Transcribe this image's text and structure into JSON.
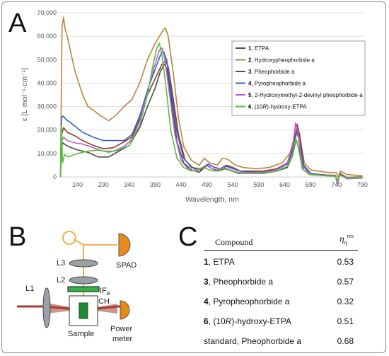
{
  "panels": {
    "a": "A",
    "b": "B",
    "c": "C"
  },
  "chart_data": {
    "type": "line",
    "xlabel": "Wavelength, nm",
    "ylabel": "ε [L·mol⁻¹·cm⁻¹]",
    "xlim": [
      205,
      795
    ],
    "ylim": [
      -6000,
      70000
    ],
    "x_ticks": [
      "240",
      "290",
      "340",
      "390",
      "440",
      "490",
      "540",
      "590",
      "640",
      "690",
      "740",
      "790"
    ],
    "x_tick_values": [
      240,
      290,
      340,
      390,
      440,
      490,
      540,
      590,
      640,
      690,
      740,
      790
    ],
    "y_ticks": [
      "0",
      "10,000",
      "20,000",
      "30,000",
      "40,000",
      "50,000",
      "60,000",
      "70,000"
    ],
    "y_tick_values": [
      0,
      10000,
      20000,
      30000,
      40000,
      50000,
      60000,
      70000
    ],
    "grid": "horizontal",
    "legend_position": "right",
    "series": [
      {
        "num": "1",
        "label": ", ETPA",
        "color": "#4a4a4a",
        "points": [
          [
            207,
            0
          ],
          [
            209,
            13000
          ],
          [
            212,
            14500
          ],
          [
            218,
            13500
          ],
          [
            228,
            12500
          ],
          [
            240,
            11500
          ],
          [
            260,
            10500
          ],
          [
            280,
            8500
          ],
          [
            300,
            8500
          ],
          [
            320,
            11000
          ],
          [
            340,
            13500
          ],
          [
            360,
            21000
          ],
          [
            375,
            30000
          ],
          [
            390,
            38000
          ],
          [
            400,
            45000
          ],
          [
            408,
            48000
          ],
          [
            413,
            46000
          ],
          [
            420,
            35000
          ],
          [
            432,
            15000
          ],
          [
            445,
            6000
          ],
          [
            460,
            3000
          ],
          [
            475,
            2000
          ],
          [
            490,
            5000
          ],
          [
            500,
            3500
          ],
          [
            510,
            2500
          ],
          [
            525,
            3500
          ],
          [
            535,
            3000
          ],
          [
            550,
            1500
          ],
          [
            575,
            1500
          ],
          [
            600,
            1500
          ],
          [
            625,
            2500
          ],
          [
            645,
            4000
          ],
          [
            655,
            9000
          ],
          [
            662,
            16000
          ],
          [
            668,
            12000
          ],
          [
            676,
            3000
          ],
          [
            690,
            1000
          ],
          [
            720,
            500
          ],
          [
            738,
            300
          ],
          [
            742,
            -2000
          ],
          [
            746,
            1500
          ],
          [
            760,
            -500
          ],
          [
            790,
            -500
          ]
        ]
      },
      {
        "num": "2",
        "label": ", Hydroxypheophorbide a",
        "color": "#b8863a",
        "points": [
          [
            207,
            0
          ],
          [
            210,
            64000
          ],
          [
            213,
            68000
          ],
          [
            216,
            63000
          ],
          [
            220,
            60000
          ],
          [
            235,
            45000
          ],
          [
            250,
            35000
          ],
          [
            260,
            30000
          ],
          [
            270,
            28500
          ],
          [
            285,
            26000
          ],
          [
            300,
            24000
          ],
          [
            315,
            26500
          ],
          [
            330,
            30000
          ],
          [
            345,
            33000
          ],
          [
            360,
            40000
          ],
          [
            375,
            50000
          ],
          [
            390,
            57000
          ],
          [
            405,
            62500
          ],
          [
            410,
            63500
          ],
          [
            415,
            60000
          ],
          [
            425,
            44000
          ],
          [
            435,
            25000
          ],
          [
            445,
            13000
          ],
          [
            460,
            7000
          ],
          [
            475,
            5000
          ],
          [
            485,
            8000
          ],
          [
            495,
            6000
          ],
          [
            510,
            5000
          ],
          [
            520,
            8000
          ],
          [
            530,
            7500
          ],
          [
            545,
            5000
          ],
          [
            560,
            4000
          ],
          [
            585,
            3500
          ],
          [
            610,
            4000
          ],
          [
            635,
            6000
          ],
          [
            650,
            10000
          ],
          [
            660,
            18000
          ],
          [
            665,
            20500
          ],
          [
            670,
            16000
          ],
          [
            678,
            6000
          ],
          [
            690,
            3000
          ],
          [
            720,
            2000
          ],
          [
            740,
            1800
          ],
          [
            744,
            -500
          ],
          [
            748,
            2500
          ],
          [
            760,
            1000
          ],
          [
            790,
            500
          ]
        ]
      },
      {
        "num": "3",
        "label": ", Pheophorbide a",
        "color": "#8e3b24",
        "points": [
          [
            207,
            0
          ],
          [
            209,
            18000
          ],
          [
            213,
            21000
          ],
          [
            220,
            19000
          ],
          [
            235,
            17500
          ],
          [
            250,
            15500
          ],
          [
            270,
            13500
          ],
          [
            290,
            12000
          ],
          [
            310,
            12500
          ],
          [
            330,
            15000
          ],
          [
            345,
            17000
          ],
          [
            360,
            25000
          ],
          [
            375,
            35000
          ],
          [
            390,
            42000
          ],
          [
            403,
            48000
          ],
          [
            410,
            49500
          ],
          [
            415,
            47000
          ],
          [
            423,
            36000
          ],
          [
            435,
            18000
          ],
          [
            448,
            7000
          ],
          [
            465,
            3500
          ],
          [
            480,
            3000
          ],
          [
            492,
            5500
          ],
          [
            505,
            4000
          ],
          [
            515,
            3500
          ],
          [
            528,
            5000
          ],
          [
            540,
            4000
          ],
          [
            555,
            2500
          ],
          [
            575,
            2500
          ],
          [
            600,
            2500
          ],
          [
            625,
            3500
          ],
          [
            645,
            6000
          ],
          [
            657,
            13000
          ],
          [
            664,
            22500
          ],
          [
            669,
            18000
          ],
          [
            677,
            5000
          ],
          [
            690,
            1500
          ],
          [
            720,
            800
          ],
          [
            738,
            700
          ],
          [
            742,
            -3000
          ],
          [
            746,
            1500
          ],
          [
            760,
            -200
          ],
          [
            790,
            0
          ]
        ]
      },
      {
        "num": "4",
        "label": ", Pyropheophorbide a",
        "color": "#3763b8",
        "points": [
          [
            207,
            0
          ],
          [
            209,
            25000
          ],
          [
            212,
            26000
          ],
          [
            218,
            24500
          ],
          [
            230,
            22500
          ],
          [
            250,
            19000
          ],
          [
            270,
            17000
          ],
          [
            290,
            15500
          ],
          [
            310,
            15500
          ],
          [
            330,
            15500
          ],
          [
            345,
            18000
          ],
          [
            360,
            26000
          ],
          [
            375,
            37000
          ],
          [
            390,
            46000
          ],
          [
            402,
            53000
          ],
          [
            406,
            53500
          ],
          [
            412,
            50000
          ],
          [
            420,
            38000
          ],
          [
            432,
            19000
          ],
          [
            445,
            8000
          ],
          [
            460,
            4000
          ],
          [
            478,
            3500
          ],
          [
            492,
            5500
          ],
          [
            505,
            4000
          ],
          [
            515,
            3500
          ],
          [
            528,
            4500
          ],
          [
            540,
            3500
          ],
          [
            555,
            2500
          ],
          [
            575,
            2000
          ],
          [
            600,
            2000
          ],
          [
            625,
            3000
          ],
          [
            645,
            5500
          ],
          [
            657,
            12000
          ],
          [
            663,
            19000
          ],
          [
            668,
            16000
          ],
          [
            676,
            5000
          ],
          [
            690,
            1500
          ],
          [
            720,
            700
          ],
          [
            738,
            600
          ],
          [
            742,
            -2500
          ],
          [
            746,
            1000
          ],
          [
            760,
            -300
          ],
          [
            790,
            -200
          ]
        ]
      },
      {
        "num": "5",
        "label": ", 2-Hydroxymethyl-2-devinyl pheophorbide-a",
        "color": "#c15ad7",
        "points": [
          [
            207,
            0
          ],
          [
            209,
            15000
          ],
          [
            213,
            17000
          ],
          [
            220,
            15500
          ],
          [
            235,
            14500
          ],
          [
            250,
            14000
          ],
          [
            270,
            12500
          ],
          [
            290,
            11000
          ],
          [
            310,
            11000
          ],
          [
            330,
            13000
          ],
          [
            345,
            16000
          ],
          [
            360,
            24000
          ],
          [
            375,
            36000
          ],
          [
            388,
            47000
          ],
          [
            398,
            54000
          ],
          [
            403,
            55000
          ],
          [
            408,
            51000
          ],
          [
            416,
            38000
          ],
          [
            428,
            18000
          ],
          [
            440,
            7000
          ],
          [
            455,
            3000
          ],
          [
            470,
            2500
          ],
          [
            488,
            5000
          ],
          [
            500,
            3500
          ],
          [
            510,
            3000
          ],
          [
            522,
            4000
          ],
          [
            535,
            3000
          ],
          [
            550,
            2000
          ],
          [
            575,
            1800
          ],
          [
            600,
            1800
          ],
          [
            625,
            3000
          ],
          [
            645,
            6000
          ],
          [
            656,
            14000
          ],
          [
            661,
            23000
          ],
          [
            666,
            18000
          ],
          [
            674,
            5000
          ],
          [
            688,
            1200
          ],
          [
            720,
            600
          ],
          [
            738,
            500
          ],
          [
            742,
            -3500
          ],
          [
            746,
            1000
          ],
          [
            760,
            -800
          ],
          [
            790,
            -500
          ]
        ]
      },
      {
        "num": "6",
        "label": ", (10",
        "label_italic": "R",
        "label_tail": ")-hydroxy-ETPA",
        "color": "#52c236",
        "points": [
          [
            207,
            0
          ],
          [
            209,
            22000
          ],
          [
            211,
            6000
          ],
          [
            215,
            9500
          ],
          [
            222,
            8500
          ],
          [
            240,
            10000
          ],
          [
            260,
            11000
          ],
          [
            280,
            11500
          ],
          [
            300,
            10500
          ],
          [
            320,
            11500
          ],
          [
            340,
            13500
          ],
          [
            360,
            22000
          ],
          [
            375,
            35000
          ],
          [
            385,
            47000
          ],
          [
            393,
            55000
          ],
          [
            398,
            57000
          ],
          [
            403,
            52000
          ],
          [
            410,
            40000
          ],
          [
            420,
            20000
          ],
          [
            432,
            8000
          ],
          [
            445,
            4000
          ],
          [
            460,
            2500
          ],
          [
            482,
            4000
          ],
          [
            495,
            3000
          ],
          [
            505,
            2500
          ],
          [
            520,
            3500
          ],
          [
            532,
            3000
          ],
          [
            550,
            1500
          ],
          [
            575,
            1500
          ],
          [
            600,
            1500
          ],
          [
            625,
            2500
          ],
          [
            645,
            4500
          ],
          [
            656,
            10000
          ],
          [
            661,
            16500
          ],
          [
            666,
            13000
          ],
          [
            674,
            3500
          ],
          [
            688,
            1000
          ],
          [
            720,
            500
          ],
          [
            738,
            400
          ],
          [
            742,
            -2000
          ],
          [
            746,
            800
          ],
          [
            760,
            -400
          ],
          [
            790,
            -300
          ]
        ]
      }
    ]
  },
  "schematic": {
    "labels": {
      "l3": "L3",
      "l2": "L2",
      "l1": "L1",
      "if": "IF",
      "if_sub": "B",
      "ch": "CH",
      "sample": "Sample",
      "spad": "SPAD",
      "power_line1": "Power",
      "power_line2": "meter"
    },
    "colors": {
      "laser": "#a63e32",
      "beam": "#e9b44a",
      "optics": "#9aa0a6",
      "filter_green": "#2fb347",
      "sample_green": "#1f8a33",
      "detector": "#e88a1a"
    }
  },
  "table": {
    "header_compound": "Compound",
    "header_eta": "η",
    "header_eta_sub": "q",
    "header_eta_sup": "res",
    "rows": [
      {
        "num": "1",
        "name": ", ETPA",
        "value": "0.53"
      },
      {
        "num": "3",
        "name": ", Pheophorbide a",
        "value": "0.57"
      },
      {
        "num": "4",
        "name": ", Pyropheophorbide a",
        "value": "0.32"
      },
      {
        "num": "6",
        "name": ", (10",
        "name_italic": "R",
        "name_tail": ")-hydroxy-ETPA",
        "value": "0.51"
      },
      {
        "num": "",
        "name": "standard, Pheophorbide a",
        "value": "0.68"
      }
    ]
  }
}
